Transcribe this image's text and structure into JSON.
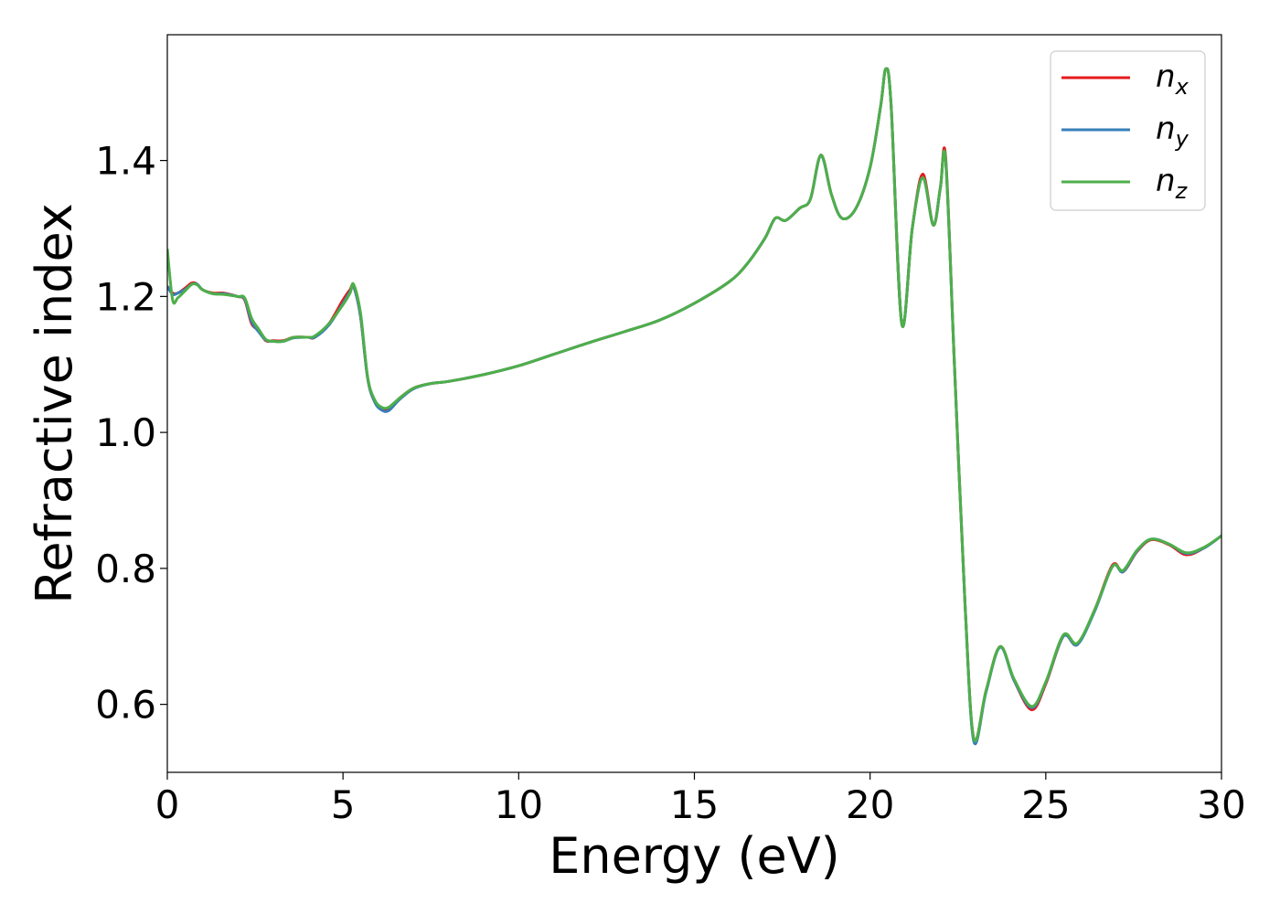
{
  "chart_data": {
    "type": "line",
    "title": "",
    "xlabel": "Energy (eV)",
    "ylabel": "Refractive index",
    "xlim": [
      0,
      30
    ],
    "ylim": [
      0.5,
      1.585
    ],
    "xticks": [
      0,
      5,
      10,
      15,
      20,
      25,
      30
    ],
    "xtick_labels": [
      "0",
      "5",
      "10",
      "15",
      "20",
      "25",
      "30"
    ],
    "yticks": [
      0.6,
      0.8,
      1.0,
      1.2,
      1.4
    ],
    "ytick_labels": [
      "0.6",
      "0.8",
      "1.0",
      "1.2",
      "1.4"
    ],
    "grid": false,
    "legend_position": "top-right",
    "series": [
      {
        "name": "n_x",
        "label_base": "n",
        "label_sub": "x",
        "color": "#e41a1c",
        "x": [
          0,
          0.15,
          0.3,
          0.5,
          0.7,
          0.85,
          1.0,
          1.3,
          1.6,
          2.0,
          2.2,
          2.4,
          2.6,
          2.8,
          3.0,
          3.3,
          3.6,
          4.0,
          4.2,
          4.6,
          5.0,
          5.2,
          5.3,
          5.5,
          5.7,
          5.9,
          6.1,
          6.3,
          6.6,
          7.0,
          7.5,
          8.0,
          9.0,
          10.0,
          11.0,
          12.0,
          13.0,
          14.0,
          15.0,
          16.0,
          16.5,
          17.0,
          17.3,
          17.6,
          18.0,
          18.3,
          18.6,
          18.9,
          19.2,
          19.6,
          20.0,
          20.3,
          20.45,
          20.6,
          20.9,
          21.2,
          21.5,
          21.8,
          22.0,
          22.15,
          22.4,
          22.7,
          22.95,
          23.3,
          23.7,
          24.1,
          24.6,
          25.0,
          25.5,
          25.9,
          26.4,
          26.9,
          27.2,
          27.6,
          28.0,
          28.5,
          29.0,
          29.5,
          30.0
        ],
        "y": [
          1.215,
          1.205,
          1.205,
          1.212,
          1.22,
          1.218,
          1.21,
          1.205,
          1.205,
          1.2,
          1.195,
          1.16,
          1.15,
          1.135,
          1.135,
          1.135,
          1.14,
          1.14,
          1.14,
          1.16,
          1.195,
          1.21,
          1.215,
          1.17,
          1.08,
          1.045,
          1.035,
          1.035,
          1.05,
          1.065,
          1.072,
          1.075,
          1.085,
          1.098,
          1.115,
          1.132,
          1.148,
          1.165,
          1.19,
          1.222,
          1.248,
          1.285,
          1.315,
          1.312,
          1.33,
          1.343,
          1.408,
          1.35,
          1.315,
          1.33,
          1.39,
          1.48,
          1.535,
          1.48,
          1.16,
          1.3,
          1.38,
          1.305,
          1.36,
          1.405,
          1.1,
          0.75,
          0.55,
          0.62,
          0.685,
          0.635,
          0.592,
          0.63,
          0.7,
          0.688,
          0.74,
          0.805,
          0.795,
          0.825,
          0.842,
          0.835,
          0.82,
          0.83,
          0.848
        ]
      },
      {
        "name": "n_y",
        "label_base": "n",
        "label_sub": "y",
        "color": "#377eb8",
        "x": [
          0,
          0.15,
          0.3,
          0.5,
          0.7,
          0.85,
          1.0,
          1.3,
          1.6,
          2.0,
          2.2,
          2.4,
          2.6,
          2.8,
          3.0,
          3.3,
          3.6,
          4.0,
          4.2,
          4.6,
          5.0,
          5.2,
          5.3,
          5.5,
          5.7,
          5.9,
          6.1,
          6.3,
          6.6,
          7.0,
          7.5,
          8.0,
          9.0,
          10.0,
          11.0,
          12.0,
          13.0,
          14.0,
          15.0,
          16.0,
          16.5,
          17.0,
          17.3,
          17.6,
          18.0,
          18.3,
          18.6,
          18.9,
          19.2,
          19.6,
          20.0,
          20.3,
          20.45,
          20.6,
          20.9,
          21.2,
          21.5,
          21.8,
          22.0,
          22.15,
          22.4,
          22.7,
          22.95,
          23.3,
          23.7,
          24.1,
          24.6,
          25.0,
          25.5,
          25.9,
          26.4,
          26.9,
          27.2,
          27.6,
          28.0,
          28.5,
          29.0,
          29.5,
          30.0
        ],
        "y": [
          1.215,
          1.203,
          1.205,
          1.21,
          1.218,
          1.218,
          1.21,
          1.204,
          1.204,
          1.2,
          1.196,
          1.163,
          1.148,
          1.136,
          1.134,
          1.134,
          1.139,
          1.14,
          1.14,
          1.158,
          1.19,
          1.207,
          1.215,
          1.17,
          1.08,
          1.045,
          1.033,
          1.032,
          1.048,
          1.064,
          1.072,
          1.075,
          1.085,
          1.098,
          1.115,
          1.132,
          1.148,
          1.165,
          1.19,
          1.222,
          1.248,
          1.285,
          1.315,
          1.312,
          1.33,
          1.343,
          1.407,
          1.35,
          1.315,
          1.33,
          1.39,
          1.48,
          1.535,
          1.48,
          1.16,
          1.3,
          1.375,
          1.305,
          1.36,
          1.4,
          1.1,
          0.75,
          0.546,
          0.618,
          0.684,
          0.635,
          0.595,
          0.632,
          0.7,
          0.688,
          0.738,
          0.803,
          0.795,
          0.826,
          0.843,
          0.836,
          0.822,
          0.83,
          0.848
        ]
      },
      {
        "name": "n_z",
        "label_base": "n",
        "label_sub": "z",
        "color": "#4daf4a",
        "x": [
          0,
          0.15,
          0.3,
          0.5,
          0.7,
          0.85,
          1.0,
          1.3,
          1.6,
          2.0,
          2.2,
          2.4,
          2.6,
          2.8,
          3.0,
          3.3,
          3.6,
          4.0,
          4.2,
          4.6,
          5.0,
          5.2,
          5.3,
          5.5,
          5.7,
          5.9,
          6.1,
          6.3,
          6.6,
          7.0,
          7.5,
          8.0,
          9.0,
          10.0,
          11.0,
          12.0,
          13.0,
          14.0,
          15.0,
          16.0,
          16.5,
          17.0,
          17.3,
          17.6,
          18.0,
          18.3,
          18.6,
          18.9,
          19.2,
          19.6,
          20.0,
          20.3,
          20.45,
          20.6,
          20.9,
          21.2,
          21.5,
          21.8,
          22.0,
          22.15,
          22.4,
          22.7,
          22.95,
          23.3,
          23.7,
          24.1,
          24.6,
          25.0,
          25.5,
          25.9,
          26.4,
          26.9,
          27.2,
          27.6,
          28.0,
          28.5,
          29.0,
          29.5,
          30.0
        ],
        "y": [
          1.27,
          1.195,
          1.198,
          1.208,
          1.218,
          1.217,
          1.21,
          1.204,
          1.203,
          1.2,
          1.198,
          1.168,
          1.152,
          1.137,
          1.134,
          1.134,
          1.14,
          1.14,
          1.142,
          1.16,
          1.188,
          1.205,
          1.218,
          1.175,
          1.082,
          1.048,
          1.037,
          1.037,
          1.05,
          1.065,
          1.072,
          1.075,
          1.085,
          1.098,
          1.115,
          1.132,
          1.148,
          1.165,
          1.19,
          1.222,
          1.248,
          1.285,
          1.315,
          1.312,
          1.33,
          1.343,
          1.408,
          1.35,
          1.315,
          1.33,
          1.39,
          1.48,
          1.535,
          1.48,
          1.16,
          1.3,
          1.375,
          1.305,
          1.36,
          1.4,
          1.1,
          0.75,
          0.55,
          0.62,
          0.685,
          0.637,
          0.597,
          0.633,
          0.702,
          0.69,
          0.74,
          0.803,
          0.797,
          0.827,
          0.843,
          0.836,
          0.823,
          0.831,
          0.848
        ]
      }
    ]
  }
}
